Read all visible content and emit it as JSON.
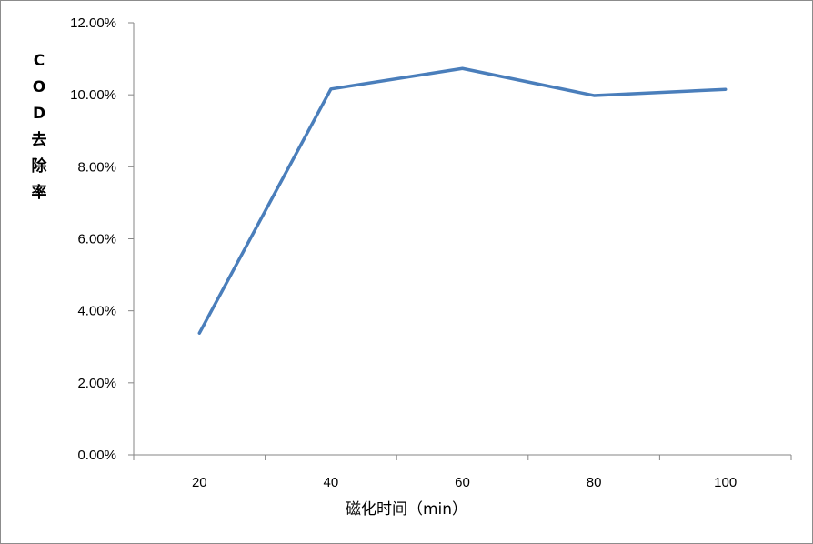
{
  "chart_data": {
    "type": "line",
    "categories": [
      "20",
      "40",
      "60",
      "80",
      "100"
    ],
    "series": [
      {
        "values": [
          3.38,
          10.16,
          10.73,
          9.98,
          10.15
        ],
        "color": "#4a7ebb"
      }
    ],
    "ylabel_chars": [
      "C",
      "O",
      "D",
      "去",
      "除",
      "率"
    ],
    "xlabel": "磁化时间（min）",
    "ylim": [
      0,
      12
    ],
    "yticks": [
      "0.00%",
      "2.00%",
      "4.00%",
      "6.00%",
      "8.00%",
      "10.00%",
      "12.00%"
    ],
    "grid": false,
    "legend": "none"
  }
}
